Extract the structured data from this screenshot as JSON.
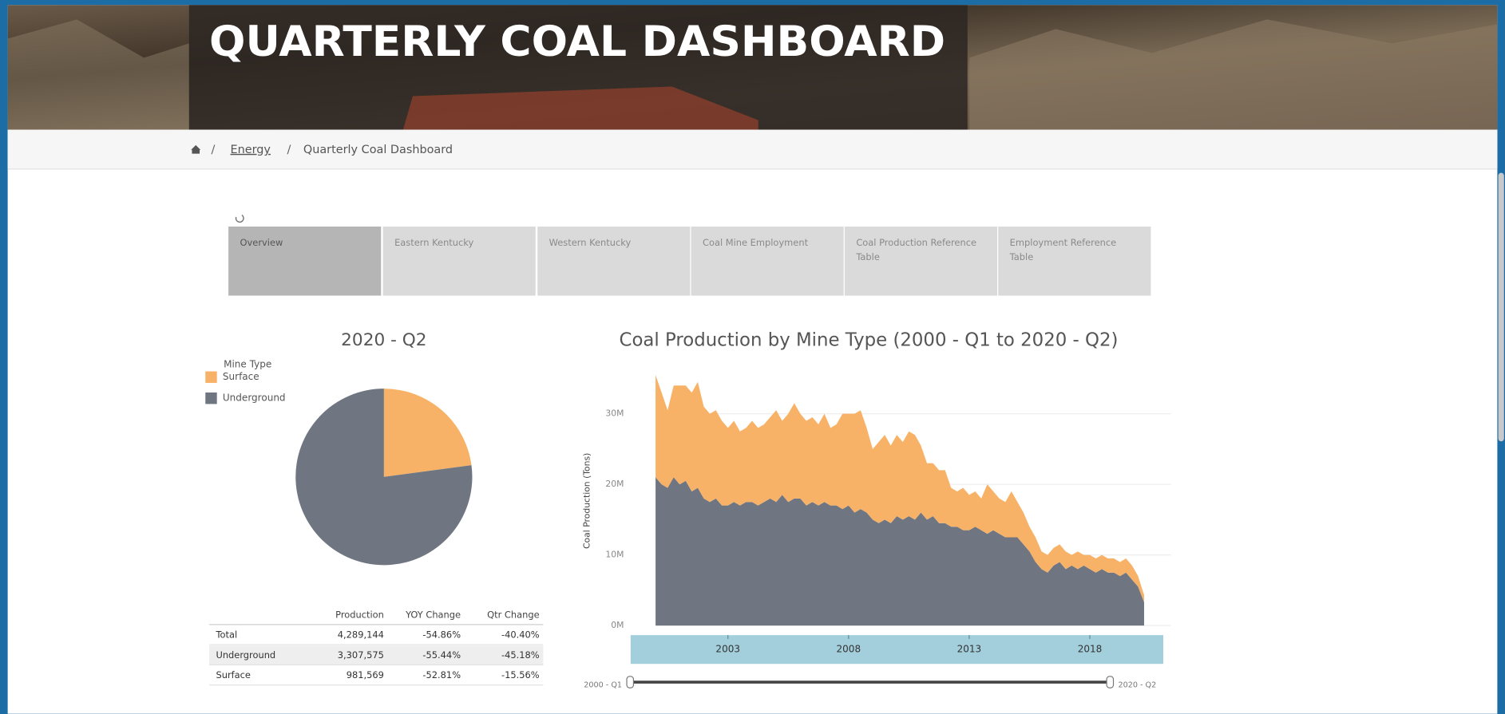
{
  "header": {
    "title": "QUARTERLY COAL DASHBOARD"
  },
  "breadcrumb": {
    "separator": "/",
    "items": [
      "Energy",
      "Quarterly Coal Dashboard"
    ]
  },
  "tabs": [
    "Overview",
    "Eastern Kentucky",
    "Western Kentucky",
    "Coal Mine Employment",
    "Coal Production Reference Table",
    "Employment Reference Table"
  ],
  "chart_data": [
    {
      "type": "pie",
      "title": "2020 - Q2",
      "legend_title": "Mine Type",
      "categories": [
        "Surface",
        "Underground"
      ],
      "values": [
        981569,
        3307575
      ],
      "colors": [
        "#f7b267",
        "#6f7682"
      ]
    },
    {
      "type": "area",
      "title": "Coal Production by Mine Type (2000 - Q1 to 2020 - Q2)",
      "y_label": "Coal Production (Tons)",
      "stacked": true,
      "grid": true,
      "x": [
        2000,
        2000.25,
        2000.5,
        2000.75,
        2001,
        2001.25,
        2001.5,
        2001.75,
        2002,
        2002.25,
        2002.5,
        2002.75,
        2003,
        2003.25,
        2003.5,
        2003.75,
        2004,
        2004.25,
        2004.5,
        2004.75,
        2005,
        2005.25,
        2005.5,
        2005.75,
        2006,
        2006.25,
        2006.5,
        2006.75,
        2007,
        2007.25,
        2007.5,
        2007.75,
        2008,
        2008.25,
        2008.5,
        2008.75,
        2009,
        2009.25,
        2009.5,
        2009.75,
        2010,
        2010.25,
        2010.5,
        2010.75,
        2011,
        2011.25,
        2011.5,
        2011.75,
        2012,
        2012.25,
        2012.5,
        2012.75,
        2013,
        2013.25,
        2013.5,
        2013.75,
        2014,
        2014.25,
        2014.5,
        2014.75,
        2015,
        2015.25,
        2015.5,
        2015.75,
        2016,
        2016.25,
        2016.5,
        2016.75,
        2017,
        2017.25,
        2017.5,
        2017.75,
        2018,
        2018.25,
        2018.5,
        2018.75,
        2019,
        2019.25,
        2019.5,
        2019.75,
        2020,
        2020.25
      ],
      "xlim": [
        2000,
        2020.25
      ],
      "xticks": [
        2003,
        2008,
        2013,
        2018
      ],
      "ylim": [
        0,
        36000000
      ],
      "yticks": [
        {
          "value": 0,
          "label": "0M"
        },
        {
          "value": 10000000,
          "label": "10M"
        },
        {
          "value": 20000000,
          "label": "20M"
        },
        {
          "value": 30000000,
          "label": "30M"
        }
      ],
      "series": [
        {
          "color": "#6f7682",
          "values": [
            21000000,
            20000000,
            19500000,
            21000000,
            20000000,
            20500000,
            19000000,
            19500000,
            18000000,
            17500000,
            18000000,
            17000000,
            17000000,
            17500000,
            17000000,
            17500000,
            17500000,
            17000000,
            17500000,
            18000000,
            17500000,
            18500000,
            17500000,
            18000000,
            18000000,
            17000000,
            17500000,
            17000000,
            17500000,
            17000000,
            17000000,
            16500000,
            17000000,
            16000000,
            16500000,
            16000000,
            15000000,
            14500000,
            15000000,
            14500000,
            15500000,
            15000000,
            15500000,
            15000000,
            16000000,
            15000000,
            15500000,
            14500000,
            14500000,
            14000000,
            14000000,
            13500000,
            13500000,
            14000000,
            13500000,
            13000000,
            13500000,
            13000000,
            12500000,
            12500000,
            12500000,
            11500000,
            10500000,
            9000000,
            8000000,
            7500000,
            8500000,
            9000000,
            8000000,
            8500000,
            8000000,
            8500000,
            8000000,
            7500000,
            8000000,
            7500000,
            7500000,
            7000000,
            7500000,
            6500000,
            5500000,
            3300000
          ]
        },
        {
          "color": "#f7b267",
          "values": [
            14500000,
            13000000,
            11000000,
            13000000,
            14000000,
            13500000,
            14000000,
            15000000,
            13000000,
            12500000,
            12500000,
            12000000,
            11000000,
            11500000,
            10500000,
            10500000,
            11500000,
            11000000,
            11000000,
            11500000,
            13000000,
            10500000,
            12500000,
            13500000,
            12000000,
            12000000,
            12000000,
            11500000,
            12500000,
            11000000,
            11500000,
            13500000,
            13000000,
            14000000,
            14000000,
            12000000,
            10000000,
            11500000,
            12000000,
            11000000,
            11500000,
            11000000,
            12000000,
            12000000,
            9500000,
            8000000,
            7500000,
            7500000,
            7500000,
            5500000,
            5000000,
            6000000,
            5000000,
            5000000,
            4500000,
            7000000,
            5500000,
            5000000,
            5000000,
            6500000,
            5000000,
            4500000,
            3500000,
            3500000,
            2500000,
            2500000,
            2500000,
            2500000,
            2500000,
            1500000,
            2500000,
            1500000,
            2000000,
            2000000,
            2000000,
            2000000,
            2000000,
            2000000,
            2000000,
            2000000,
            1500000,
            1000000
          ]
        }
      ]
    }
  ],
  "table": {
    "columns": [
      "Production",
      "YOY Change",
      "Qtr Change"
    ],
    "rows": [
      [
        "Total",
        "4,289,144",
        "-54.86%",
        "-40.40%"
      ],
      [
        "Underground",
        "3,307,575",
        "-55.44%",
        "-45.18%"
      ],
      [
        "Surface",
        "981,569",
        "-52.81%",
        "-15.56%"
      ]
    ]
  },
  "slider": {
    "start": "2000 - Q1",
    "end": "2020 - Q2"
  }
}
